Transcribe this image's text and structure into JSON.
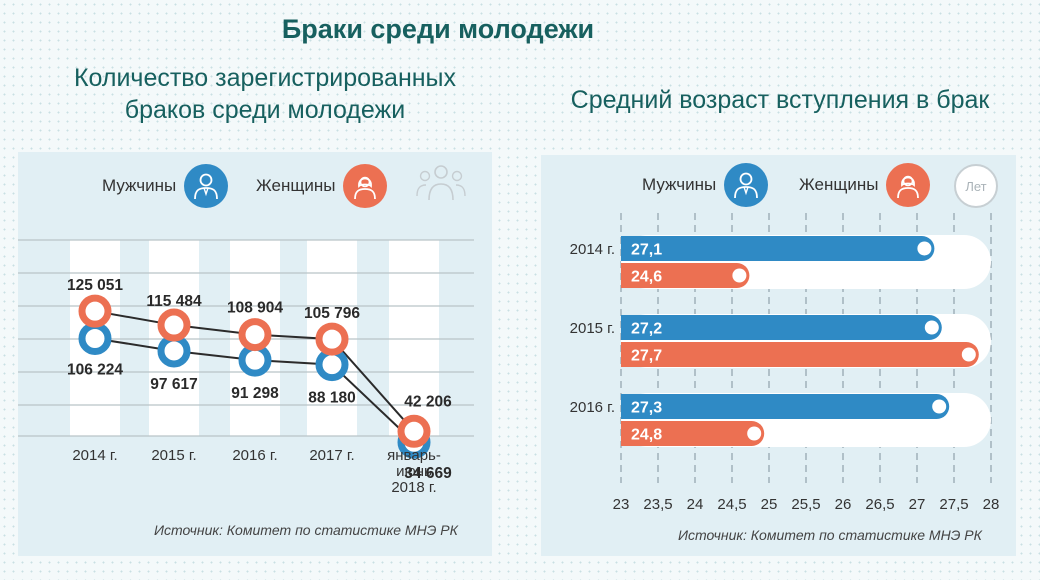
{
  "title": "Браки среди молодежи",
  "colors": {
    "men": "#2f8ac5",
    "women": "#ec7052",
    "heading": "#17605f"
  },
  "left_panel": {
    "subtitle_line1": "Количество зарегистрированных",
    "subtitle_line2": "браков среди молодежи",
    "legend_men": "Мужчины",
    "legend_women": "Женщины",
    "icon_men": "man-icon",
    "icon_women": "woman-icon",
    "icon_group": "group-icon",
    "source": "Источник: Комитет по статистике МНЭ РК"
  },
  "right_panel": {
    "subtitle": "Средний возраст вступления в брак",
    "legend_men": "Мужчины",
    "legend_women": "Женщины",
    "legend_years": "Лет",
    "source": "Источник: Комитет по статистике МНЭ РК"
  },
  "chart_data": [
    {
      "type": "line",
      "title": "Количество зарегистрированных браков среди молодежи",
      "categories": [
        "2014 г.",
        "2015 г.",
        "2016 г.",
        "2017 г.",
        [
          "январь-",
          "июнь",
          "2018 г."
        ]
      ],
      "series": [
        {
          "name": "Мужчины",
          "values": [
            106224,
            97617,
            91298,
            88180,
            34669
          ],
          "labels": [
            "106 224",
            "97 617",
            "91 298",
            "88 180",
            "34 669"
          ]
        },
        {
          "name": "Женщины",
          "values": [
            125051,
            115484,
            108904,
            105796,
            42206
          ],
          "labels": [
            "125 051",
            "115 484",
            "108 904",
            "105 796",
            "42 206"
          ]
        }
      ],
      "grid": true,
      "legend": "top"
    },
    {
      "type": "bar",
      "orientation": "horizontal",
      "title": "Средний возраст вступления в брак",
      "categories": [
        "2014 г.",
        "2015 г.",
        "2016 г."
      ],
      "series": [
        {
          "name": "Мужчины",
          "values": [
            27.1,
            27.2,
            27.3
          ],
          "labels": [
            "27,1",
            "27,2",
            "27,3"
          ]
        },
        {
          "name": "Женщины",
          "values": [
            24.6,
            27.7,
            24.8
          ],
          "labels": [
            "24,6",
            "27,7",
            "24,8"
          ]
        }
      ],
      "xlim": [
        23,
        28
      ],
      "xticks": [
        "23",
        "23,5",
        "24",
        "24,5",
        "25",
        "25,5",
        "26",
        "26,5",
        "27",
        "27,5",
        "28"
      ],
      "grid": true,
      "legend": "top"
    }
  ]
}
